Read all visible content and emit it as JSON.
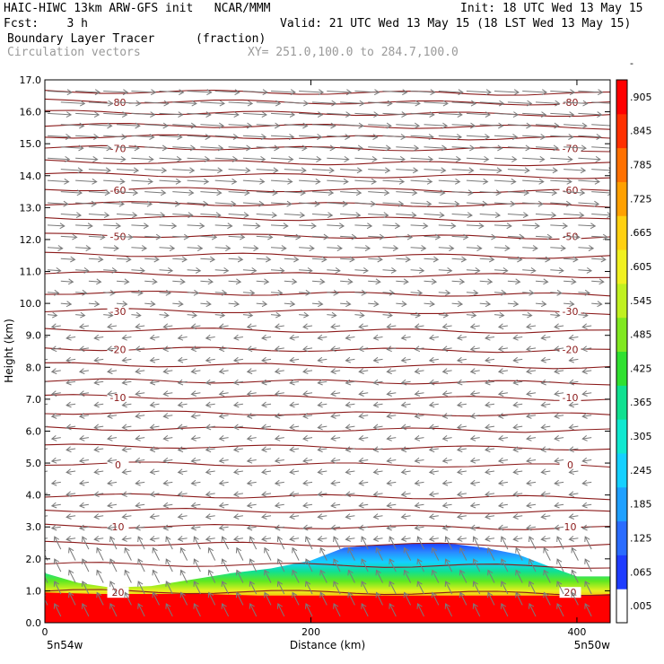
{
  "header": {
    "title_left": "HAIC-HIWC 13km ARW-GFS init   NCAR/MMM",
    "init": "Init: 18 UTC Wed 13 May 15",
    "fcst_label": "Fcst:    3 h",
    "valid": "Valid: 21 UTC Wed 13 May 15 (18 LST Wed 13 May 15)",
    "field_name": "Boundary Layer Tracer",
    "field_units": "(fraction)",
    "overlay_name": "Circulation vectors",
    "xy_range": "XY= 251.0,100.0 to 284.7,100.0"
  },
  "colors": {
    "contour": "#8b1a1a",
    "vector": "#7a7a7a",
    "colorbar": [
      "#ffffff",
      "#1e3cff",
      "#2a6cff",
      "#1fa0ff",
      "#15d0ff",
      "#10e8d0",
      "#10e090",
      "#30e030",
      "#80e820",
      "#c0f020",
      "#f0f020",
      "#ffd010",
      "#ffa000",
      "#ff7000",
      "#ff3000",
      "#ff0000"
    ]
  },
  "chart_data": {
    "type": "heatmap",
    "title": "Boundary Layer Tracer",
    "xlabel": "Distance (km)",
    "ylabel": "Height (km)",
    "xlim": [
      0,
      425
    ],
    "ylim": [
      0,
      17
    ],
    "x_ticks": [
      "0",
      "200",
      "400"
    ],
    "y_ticks": [
      "0.0",
      "1.0",
      "2.0",
      "3.0",
      "4.0",
      "5.0",
      "6.0",
      "7.0",
      "8.0",
      "9.0",
      "10.0",
      "11.0",
      "12.0",
      "13.0",
      "14.0",
      "15.0",
      "16.0",
      "17.0"
    ],
    "x_end_labels": [
      "5n54w",
      "5n50w"
    ],
    "colorbar_labels": [
      ".005",
      ".065",
      ".125",
      ".185",
      ".245",
      ".305",
      ".365",
      ".425",
      ".485",
      ".545",
      ".605",
      ".665",
      ".725",
      ".785",
      ".845",
      ".905",
      "-"
    ],
    "tracer_top_km": [
      [
        0,
        1.55
      ],
      [
        25,
        1.25
      ],
      [
        50,
        1.1
      ],
      [
        80,
        1.15
      ],
      [
        110,
        1.35
      ],
      [
        140,
        1.55
      ],
      [
        170,
        1.7
      ],
      [
        200,
        1.95
      ],
      [
        225,
        2.35
      ],
      [
        260,
        2.45
      ],
      [
        300,
        2.5
      ],
      [
        330,
        2.35
      ],
      [
        355,
        2.15
      ],
      [
        380,
        1.75
      ],
      [
        400,
        1.45
      ],
      [
        425,
        1.45
      ]
    ],
    "tracer_red_top_km": [
      [
        0,
        0.95
      ],
      [
        40,
        0.9
      ],
      [
        80,
        0.9
      ],
      [
        120,
        0.9
      ],
      [
        160,
        0.85
      ],
      [
        200,
        0.85
      ],
      [
        240,
        0.85
      ],
      [
        280,
        0.85
      ],
      [
        320,
        0.85
      ],
      [
        360,
        0.85
      ],
      [
        400,
        0.85
      ],
      [
        425,
        0.9
      ]
    ],
    "grid": "off",
    "contours": [
      {
        "label": "20",
        "height_km": 0.95
      },
      {
        "label": "10",
        "height_km": 3.0
      },
      {
        "label": "0",
        "height_km": 4.95
      },
      {
        "label": "-10",
        "height_km": 7.05
      },
      {
        "label": "-20",
        "height_km": 8.55
      },
      {
        "label": "-30",
        "height_km": 9.75
      },
      {
        "label": "-50",
        "height_km": 12.1
      },
      {
        "label": "-60",
        "height_km": 13.55
      },
      {
        "label": "-70",
        "height_km": 14.85
      },
      {
        "label": "-80",
        "height_km": 16.3
      }
    ],
    "extra_contour_heights_km": [
      1.8,
      2.45,
      3.5,
      3.95,
      5.5,
      6.05,
      6.55,
      7.55,
      8.05,
      9.15,
      10.3,
      10.9,
      11.5,
      12.65,
      13.1,
      14.0,
      14.4,
      15.2,
      15.55,
      15.95,
      16.6
    ]
  }
}
